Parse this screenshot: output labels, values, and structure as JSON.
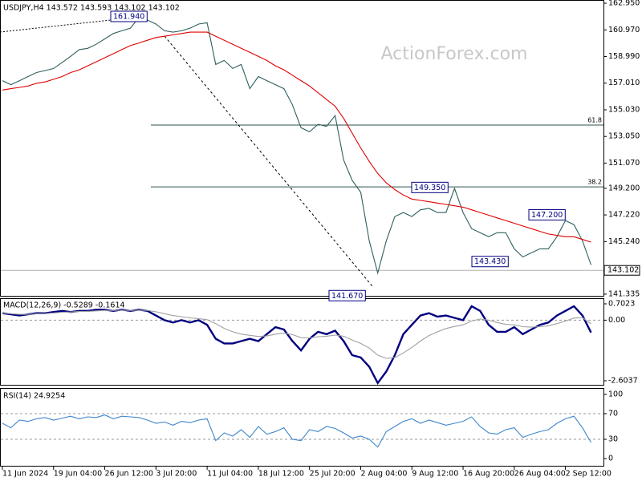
{
  "chart_data": [
    {
      "type": "line",
      "header": "USDJPY,H4 143.572 143.593 143.102 143.102",
      "watermark": "ActionForex.com",
      "ylim": [
        141.15,
        163.19
      ],
      "yticks": [
        {
          "value": 162.95,
          "label": "162.950"
        },
        {
          "value": 160.97,
          "label": "160.970"
        },
        {
          "value": 158.99,
          "label": "158.990"
        },
        {
          "value": 157.01,
          "label": "157.010"
        },
        {
          "value": 155.03,
          "label": "155.030"
        },
        {
          "value": 153.05,
          "label": "153.050"
        },
        {
          "value": 151.07,
          "label": "151.070"
        },
        {
          "value": 149.2,
          "label": "149.200"
        },
        {
          "value": 147.22,
          "label": "147.220"
        },
        {
          "value": 145.24,
          "label": "145.240"
        },
        141.335
      ],
      "last_price": {
        "value": 143.102,
        "label": "143.102"
      },
      "fib_levels": [
        {
          "value": 153.9,
          "label": "61.8"
        },
        {
          "value": 149.3,
          "label": "38.2"
        }
      ],
      "annotations": [
        {
          "value": 161.94,
          "label": "161.940"
        },
        {
          "value": 149.35,
          "label": "149.350"
        },
        {
          "value": 147.2,
          "label": "147.200"
        },
        {
          "value": 143.43,
          "label": "143.430"
        },
        {
          "value": 141.67,
          "label": "141.670"
        }
      ],
      "series": [
        {
          "name": "USDJPY",
          "color": "#2f5f5f",
          "values": [
            157.2,
            156.9,
            157.2,
            157.5,
            157.8,
            157.95,
            158.1,
            158.55,
            159.0,
            159.5,
            159.6,
            159.9,
            160.3,
            160.7,
            160.9,
            161.1,
            161.9,
            161.7,
            161.4,
            160.9,
            160.8,
            160.9,
            161.1,
            161.4,
            161.5,
            158.4,
            158.7,
            158.1,
            158.4,
            156.6,
            157.5,
            157.2,
            156.9,
            156.6,
            155.4,
            153.7,
            153.4,
            153.95,
            153.8,
            154.6,
            151.3,
            149.8,
            148.9,
            145.3,
            142.9,
            145.3,
            147.1,
            147.4,
            147.1,
            147.6,
            147.7,
            147.4,
            147.4,
            149.2,
            147.4,
            146.2,
            145.9,
            145.6,
            145.9,
            145.9,
            144.7,
            144.1,
            144.4,
            144.7,
            144.7,
            145.6,
            146.8,
            146.5,
            145.3,
            143.5
          ]
        },
        {
          "name": "MA",
          "color": "#e00000",
          "values": [
            156.5,
            156.6,
            156.7,
            156.8,
            157.0,
            157.1,
            157.3,
            157.5,
            157.8,
            158.0,
            158.3,
            158.6,
            158.9,
            159.2,
            159.5,
            159.8,
            160.0,
            160.2,
            160.4,
            160.5,
            160.6,
            160.7,
            160.8,
            160.8,
            160.8,
            160.5,
            160.2,
            159.9,
            159.6,
            159.3,
            159.0,
            158.7,
            158.3,
            158.0,
            157.6,
            157.2,
            156.8,
            156.3,
            155.8,
            155.3,
            154.4,
            153.3,
            152.2,
            151.2,
            150.3,
            149.6,
            149.1,
            148.7,
            148.4,
            148.3,
            148.2,
            148.1,
            148.0,
            147.9,
            147.8,
            147.6,
            147.4,
            147.2,
            147.0,
            146.8,
            146.6,
            146.4,
            146.2,
            146.0,
            145.8,
            145.7,
            145.6,
            145.6,
            145.4,
            145.2
          ]
        }
      ]
    },
    {
      "type": "line",
      "title": "MACD(12,26,9) -0.5289 -0.1614",
      "ylim": [
        -2.81,
        0.943
      ],
      "yticks": [
        0.7023,
        {
          "value": 0,
          "label": "0.00"
        },
        -2.6037
      ],
      "dashed_levels": [
        0
      ],
      "series": [
        {
          "name": "MACD",
          "color": "#000080",
          "values": [
            0.3,
            0.25,
            0.2,
            0.25,
            0.3,
            0.3,
            0.35,
            0.4,
            0.35,
            0.4,
            0.4,
            0.45,
            0.45,
            0.4,
            0.45,
            0.4,
            0.45,
            0.4,
            0.2,
            0.0,
            -0.1,
            0.0,
            -0.1,
            0.0,
            -0.2,
            -0.8,
            -1.0,
            -1.0,
            -0.9,
            -0.8,
            -0.9,
            -0.6,
            -0.3,
            -0.4,
            -0.9,
            -1.3,
            -0.8,
            -0.5,
            -0.6,
            -0.45,
            -0.9,
            -1.5,
            -1.6,
            -2.0,
            -2.7,
            -2.2,
            -1.5,
            -0.6,
            -0.2,
            0.2,
            0.3,
            0.15,
            0.2,
            0.1,
            0.0,
            0.6,
            0.4,
            -0.2,
            -0.5,
            -0.5,
            -0.3,
            -0.6,
            -0.4,
            -0.2,
            -0.1,
            0.2,
            0.4,
            0.6,
            0.2,
            -0.53
          ]
        },
        {
          "name": "Signal",
          "color": "#a0a0a0",
          "values": [
            0.3,
            0.28,
            0.25,
            0.25,
            0.27,
            0.29,
            0.31,
            0.34,
            0.35,
            0.37,
            0.38,
            0.4,
            0.42,
            0.42,
            0.43,
            0.42,
            0.43,
            0.42,
            0.36,
            0.28,
            0.2,
            0.15,
            0.1,
            0.07,
            0.02,
            -0.15,
            -0.35,
            -0.5,
            -0.6,
            -0.65,
            -0.7,
            -0.68,
            -0.6,
            -0.55,
            -0.62,
            -0.75,
            -0.76,
            -0.71,
            -0.69,
            -0.64,
            -0.69,
            -0.85,
            -1.0,
            -1.2,
            -1.5,
            -1.64,
            -1.61,
            -1.41,
            -1.17,
            -0.9,
            -0.66,
            -0.5,
            -0.36,
            -0.27,
            -0.2,
            -0.04,
            0.05,
            0.0,
            -0.1,
            -0.18,
            -0.2,
            -0.28,
            -0.3,
            -0.28,
            -0.24,
            -0.15,
            -0.04,
            0.09,
            0.11,
            -0.16
          ]
        }
      ]
    },
    {
      "type": "line",
      "title": "RSI(14) 24.9254",
      "ylim": [
        -12.5,
        108.75
      ],
      "yticks": [
        100,
        70,
        30,
        0
      ],
      "dashed_levels": [
        70,
        30
      ],
      "categories": [
        "11 Jun 2024",
        null,
        null,
        null,
        null,
        null,
        "19 Jun 04:00",
        null,
        null,
        null,
        null,
        null,
        "26 Jun 12:00",
        null,
        null,
        null,
        null,
        null,
        "3 Jul 20:00",
        null,
        null,
        null,
        null,
        null,
        "11 Jul 04:00",
        null,
        null,
        null,
        null,
        null,
        "18 Jul 12:00",
        null,
        null,
        null,
        null,
        null,
        "25 Jul 20:00",
        null,
        null,
        null,
        null,
        null,
        "2 Aug 04:00",
        null,
        null,
        null,
        null,
        null,
        "9 Aug 12:00",
        null,
        null,
        null,
        null,
        null,
        "16 Aug 20:00",
        null,
        null,
        null,
        null,
        null,
        "26 Aug 04:00",
        null,
        null,
        null,
        null,
        null,
        "2 Sep 12:00",
        null,
        null,
        null
      ],
      "series": [
        {
          "name": "RSI",
          "color": "#3f86cc",
          "values": [
            55,
            48,
            60,
            58,
            62,
            64,
            60,
            63,
            66,
            62,
            65,
            64,
            68,
            62,
            66,
            65,
            64,
            60,
            55,
            57,
            52,
            58,
            56,
            60,
            62,
            28,
            40,
            35,
            45,
            33,
            50,
            38,
            42,
            48,
            30,
            28,
            45,
            42,
            50,
            47,
            40,
            32,
            35,
            30,
            18,
            42,
            50,
            58,
            62,
            55,
            60,
            56,
            52,
            55,
            58,
            65,
            50,
            40,
            38,
            45,
            48,
            33,
            38,
            42,
            45,
            55,
            62,
            66,
            48,
            25
          ]
        }
      ]
    }
  ]
}
